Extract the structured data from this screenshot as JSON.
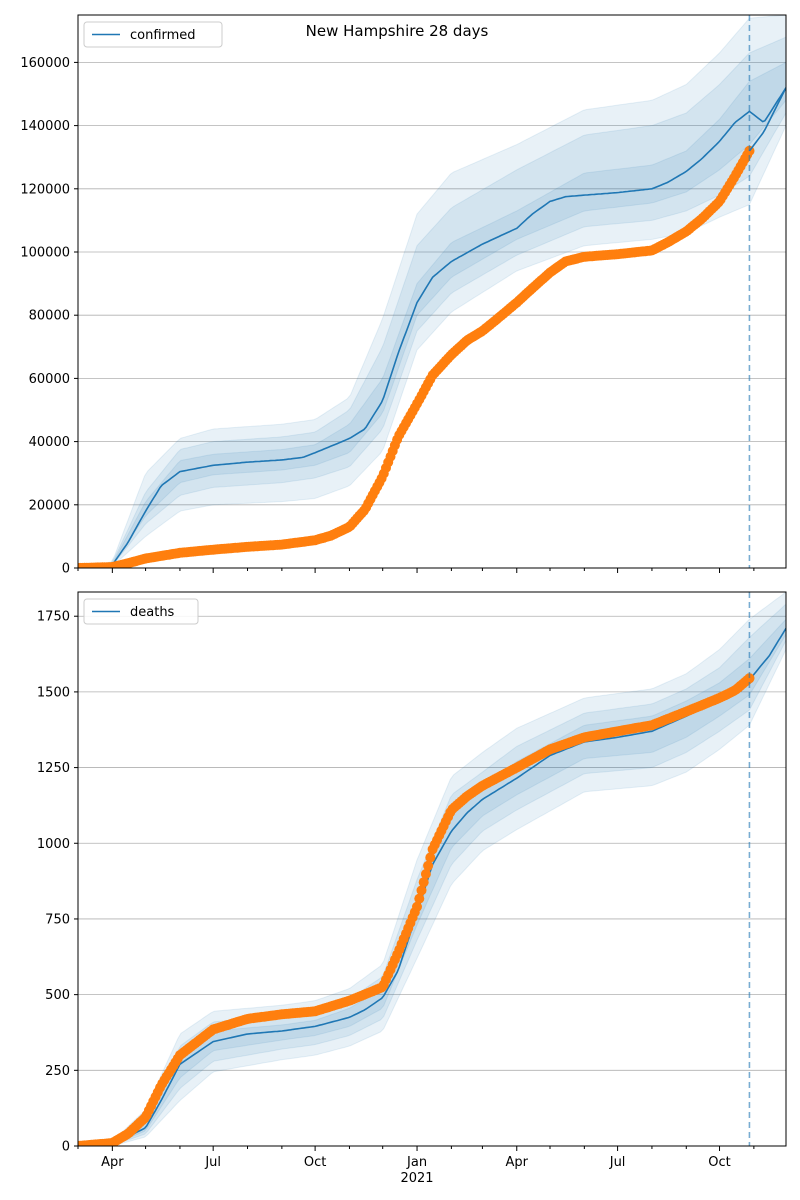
{
  "figure": {
    "title": "New Hampshire 28 days"
  },
  "chart_data": [
    {
      "type": "line",
      "title": "New Hampshire 28 days",
      "xlabel": "",
      "ylabel": "",
      "xlim": [
        "2020-03-01",
        "2021-11-30"
      ],
      "ylim": [
        0,
        175000
      ],
      "yticks": [
        0,
        20000,
        40000,
        60000,
        80000,
        100000,
        120000,
        140000,
        160000
      ],
      "xticks": [],
      "grid": "y",
      "legend": {
        "placement": "top-left",
        "entries": [
          "confirmed"
        ]
      },
      "forecast_start": "2021-10-28",
      "colors": {
        "model": "#1f77b4",
        "observed": "#ff7f0e",
        "band": "#1f77b4"
      },
      "series": [
        {
          "name": "confirmed",
          "kind": "model-median",
          "x": [
            "2020-03-01",
            "2020-04-01",
            "2020-04-15",
            "2020-05-01",
            "2020-05-15",
            "2020-06-01",
            "2020-07-01",
            "2020-08-01",
            "2020-09-01",
            "2020-09-20",
            "2020-10-01",
            "2020-10-15",
            "2020-11-01",
            "2020-11-15",
            "2020-12-01",
            "2020-12-15",
            "2021-01-01",
            "2021-01-15",
            "2021-02-01",
            "2021-03-01",
            "2021-04-01",
            "2021-04-15",
            "2021-05-01",
            "2021-05-15",
            "2021-06-01",
            "2021-07-01",
            "2021-08-01",
            "2021-08-15",
            "2021-09-01",
            "2021-09-15",
            "2021-10-01",
            "2021-10-15",
            "2021-10-28",
            "2021-11-10",
            "2021-11-30"
          ],
          "y": [
            0,
            1000,
            8000,
            18000,
            26000,
            30500,
            32500,
            33500,
            34200,
            35000,
            36500,
            38500,
            41000,
            44000,
            53000,
            68000,
            84000,
            92000,
            97000,
            102500,
            107500,
            112000,
            116000,
            117500,
            118000,
            118800,
            120000,
            122000,
            125500,
            129500,
            135000,
            141000,
            144500,
            141000,
            152000
          ]
        },
        {
          "name": "",
          "kind": "observed",
          "x": [
            "2020-03-01",
            "2020-04-01",
            "2020-04-15",
            "2020-05-01",
            "2020-06-01",
            "2020-07-01",
            "2020-08-01",
            "2020-09-01",
            "2020-10-01",
            "2020-10-15",
            "2020-11-01",
            "2020-11-15",
            "2020-12-01",
            "2020-12-15",
            "2021-01-01",
            "2021-01-15",
            "2021-02-01",
            "2021-02-15",
            "2021-03-01",
            "2021-03-15",
            "2021-04-01",
            "2021-04-15",
            "2021-05-01",
            "2021-05-15",
            "2021-06-01",
            "2021-07-01",
            "2021-08-01",
            "2021-08-15",
            "2021-09-01",
            "2021-09-15",
            "2021-10-01",
            "2021-10-15",
            "2021-10-28"
          ],
          "y": [
            0,
            300,
            1500,
            3000,
            4800,
            5800,
            6700,
            7400,
            8800,
            10200,
            13000,
            18500,
            29000,
            41500,
            52000,
            61000,
            67500,
            72000,
            75000,
            79000,
            84000,
            88500,
            93500,
            97000,
            98500,
            99300,
            100500,
            103000,
            106500,
            110500,
            116000,
            124000,
            132000
          ]
        },
        {
          "name": "",
          "kind": "projection",
          "x": [
            "2021-10-28",
            "2021-11-10",
            "2021-11-30"
          ],
          "y": [
            132000,
            138000,
            152000
          ]
        }
      ],
      "bands": [
        {
          "x": [
            "2020-03-01",
            "2020-04-01",
            "2020-05-01",
            "2020-06-01",
            "2020-07-01",
            "2020-09-01",
            "2020-10-01",
            "2020-11-01",
            "2020-12-01",
            "2021-01-01",
            "2021-02-01",
            "2021-04-01",
            "2021-06-01",
            "2021-08-01",
            "2021-09-01",
            "2021-10-01",
            "2021-10-28",
            "2021-11-30"
          ],
          "lower": [
            0,
            500,
            10000,
            18000,
            20000,
            21000,
            22000,
            26000,
            37000,
            69000,
            81000,
            94000,
            102000,
            104000,
            106000,
            111000,
            115000,
            140000
          ],
          "upper": [
            0,
            2000,
            30000,
            41000,
            44000,
            45500,
            47000,
            54000,
            79000,
            112000,
            125000,
            134000,
            145000,
            148000,
            153000,
            163000,
            174000,
            175000
          ]
        },
        {
          "x": [
            "2020-03-01",
            "2020-04-01",
            "2020-05-01",
            "2020-06-01",
            "2020-07-01",
            "2020-09-01",
            "2020-10-01",
            "2020-11-01",
            "2020-12-01",
            "2021-01-01",
            "2021-02-01",
            "2021-04-01",
            "2021-06-01",
            "2021-08-01",
            "2021-09-01",
            "2021-10-01",
            "2021-10-28",
            "2021-11-30"
          ],
          "lower": [
            0,
            700,
            14000,
            23000,
            25500,
            27000,
            28500,
            32000,
            44000,
            75000,
            87000,
            99000,
            108000,
            110000,
            113000,
            118000,
            124000,
            144000
          ],
          "upper": [
            0,
            1700,
            24000,
            37500,
            40000,
            41500,
            43000,
            50000,
            70000,
            102000,
            114000,
            126000,
            137000,
            140000,
            144000,
            153000,
            163000,
            168000
          ]
        },
        {
          "x": [
            "2020-03-01",
            "2020-04-01",
            "2020-05-01",
            "2020-06-01",
            "2020-07-01",
            "2020-09-01",
            "2020-10-01",
            "2020-11-01",
            "2020-12-01",
            "2021-01-01",
            "2021-02-01",
            "2021-04-01",
            "2021-06-01",
            "2021-08-01",
            "2021-09-01",
            "2021-10-01",
            "2021-10-28",
            "2021-11-30"
          ],
          "lower": [
            0,
            850,
            16500,
            27000,
            29500,
            31000,
            32500,
            36500,
            49000,
            80000,
            92000,
            104000,
            113000,
            115500,
            119000,
            126000,
            134000,
            148000
          ],
          "upper": [
            0,
            1300,
            21000,
            34000,
            36000,
            37500,
            39000,
            45500,
            60000,
            90000,
            103000,
            113000,
            125000,
            127500,
            132000,
            142000,
            154000,
            160000
          ]
        }
      ]
    },
    {
      "type": "line",
      "title": "",
      "xlabel": "",
      "ylabel": "",
      "xlim": [
        "2020-03-01",
        "2021-11-30"
      ],
      "ylim": [
        0,
        1830
      ],
      "yticks": [
        0,
        250,
        500,
        750,
        1000,
        1250,
        1500,
        1750
      ],
      "xticks": [
        {
          "date": "2020-04-01",
          "label": "Apr"
        },
        {
          "date": "2020-07-01",
          "label": "Jul"
        },
        {
          "date": "2020-10-01",
          "label": "Oct"
        },
        {
          "date": "2021-01-01",
          "label": "Jan",
          "sublabel": "2021"
        },
        {
          "date": "2021-04-01",
          "label": "Apr"
        },
        {
          "date": "2021-07-01",
          "label": "Jul"
        },
        {
          "date": "2021-10-01",
          "label": "Oct"
        }
      ],
      "grid": "y",
      "legend": {
        "placement": "top-left",
        "entries": [
          "deaths"
        ]
      },
      "forecast_start": "2021-10-28",
      "colors": {
        "model": "#1f77b4",
        "observed": "#ff7f0e",
        "band": "#1f77b4"
      },
      "series": [
        {
          "name": "deaths",
          "kind": "model-median",
          "x": [
            "2020-03-01",
            "2020-04-01",
            "2020-05-01",
            "2020-05-15",
            "2020-06-01",
            "2020-07-01",
            "2020-08-01",
            "2020-09-01",
            "2020-10-01",
            "2020-11-01",
            "2020-11-15",
            "2020-12-01",
            "2020-12-15",
            "2021-01-01",
            "2021-01-15",
            "2021-02-01",
            "2021-02-15",
            "2021-03-01",
            "2021-04-01",
            "2021-05-01",
            "2021-06-01",
            "2021-07-01",
            "2021-08-01",
            "2021-09-01",
            "2021-10-01",
            "2021-10-15",
            "2021-10-28",
            "2021-11-15",
            "2021-11-30"
          ],
          "y": [
            0,
            5,
            60,
            150,
            270,
            345,
            370,
            380,
            395,
            425,
            450,
            490,
            580,
            770,
            930,
            1040,
            1100,
            1145,
            1215,
            1290,
            1335,
            1350,
            1370,
            1420,
            1475,
            1505,
            1540,
            1620,
            1710
          ]
        },
        {
          "name": "",
          "kind": "observed",
          "x": [
            "2020-03-01",
            "2020-04-01",
            "2020-04-15",
            "2020-05-01",
            "2020-05-15",
            "2020-06-01",
            "2020-07-01",
            "2020-08-01",
            "2020-09-01",
            "2020-10-01",
            "2020-11-01",
            "2020-12-01",
            "2020-12-15",
            "2021-01-01",
            "2021-01-15",
            "2021-02-01",
            "2021-02-15",
            "2021-03-01",
            "2021-04-01",
            "2021-05-01",
            "2021-06-01",
            "2021-07-01",
            "2021-08-01",
            "2021-09-01",
            "2021-10-01",
            "2021-10-15",
            "2021-10-28"
          ],
          "y": [
            0,
            10,
            40,
            95,
            200,
            300,
            385,
            420,
            435,
            445,
            480,
            525,
            640,
            790,
            980,
            1110,
            1155,
            1190,
            1250,
            1310,
            1350,
            1370,
            1390,
            1435,
            1480,
            1505,
            1545
          ]
        }
      ],
      "bands": [
        {
          "x": [
            "2020-03-01",
            "2020-04-01",
            "2020-05-01",
            "2020-06-01",
            "2020-07-01",
            "2020-09-01",
            "2020-10-01",
            "2020-11-01",
            "2020-12-01",
            "2021-01-01",
            "2021-02-01",
            "2021-03-01",
            "2021-04-01",
            "2021-06-01",
            "2021-08-01",
            "2021-09-01",
            "2021-10-01",
            "2021-10-28",
            "2021-11-30"
          ],
          "lower": [
            0,
            0,
            30,
            150,
            245,
            285,
            300,
            330,
            380,
            620,
            865,
            975,
            1045,
            1170,
            1190,
            1235,
            1310,
            1390,
            1640
          ],
          "upper": [
            0,
            15,
            120,
            370,
            445,
            465,
            480,
            520,
            600,
            945,
            1220,
            1300,
            1380,
            1480,
            1510,
            1560,
            1640,
            1740,
            1830
          ]
        },
        {
          "x": [
            "2020-03-01",
            "2020-04-01",
            "2020-05-01",
            "2020-06-01",
            "2020-07-01",
            "2020-09-01",
            "2020-10-01",
            "2020-11-01",
            "2020-12-01",
            "2021-01-01",
            "2021-02-01",
            "2021-03-01",
            "2021-04-01",
            "2021-06-01",
            "2021-08-01",
            "2021-09-01",
            "2021-10-01",
            "2021-10-28",
            "2021-11-30"
          ],
          "lower": [
            0,
            2,
            40,
            190,
            280,
            320,
            335,
            365,
            420,
            680,
            930,
            1040,
            1110,
            1230,
            1250,
            1300,
            1370,
            1440,
            1670
          ],
          "upper": [
            0,
            10,
            95,
            330,
            410,
            430,
            445,
            485,
            560,
            880,
            1160,
            1235,
            1320,
            1430,
            1460,
            1510,
            1580,
            1680,
            1790
          ]
        },
        {
          "x": [
            "2020-03-01",
            "2020-04-01",
            "2020-05-01",
            "2020-06-01",
            "2020-07-01",
            "2020-09-01",
            "2020-10-01",
            "2020-11-01",
            "2020-12-01",
            "2021-01-01",
            "2021-02-01",
            "2021-03-01",
            "2021-04-01",
            "2021-06-01",
            "2021-08-01",
            "2021-09-01",
            "2021-10-01",
            "2021-10-28",
            "2021-11-30"
          ],
          "lower": [
            0,
            3,
            50,
            225,
            315,
            350,
            365,
            395,
            455,
            730,
            985,
            1090,
            1160,
            1280,
            1300,
            1350,
            1420,
            1490,
            1690
          ],
          "upper": [
            0,
            7,
            80,
            300,
            380,
            400,
            415,
            455,
            520,
            820,
            1100,
            1190,
            1270,
            1390,
            1420,
            1470,
            1530,
            1610,
            1740
          ]
        }
      ]
    }
  ]
}
